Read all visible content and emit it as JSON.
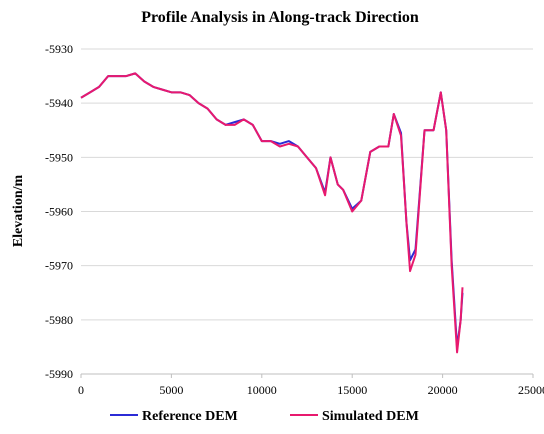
{
  "chart_data": {
    "type": "line",
    "title": "Profile Analysis in Along-track Direction",
    "y_label": "Elevation/m",
    "x": [
      0,
      500,
      1000,
      1500,
      2000,
      2500,
      3000,
      3500,
      4000,
      4500,
      5000,
      5500,
      6000,
      6500,
      7000,
      7500,
      8000,
      8500,
      9000,
      9500,
      10000,
      10500,
      11000,
      11500,
      12000,
      12500,
      13000,
      13500,
      13800,
      14200,
      14500,
      15000,
      15500,
      16000,
      16500,
      17000,
      17300,
      17700,
      18000,
      18200,
      18500,
      19000,
      19500,
      19900,
      20200,
      20500,
      20800,
      21000,
      21100
    ],
    "series": [
      {
        "name": "Reference DEM",
        "color": "#2b2bd6",
        "values": [
          -5939,
          -5938,
          -5937,
          -5935,
          -5935,
          -5935,
          -5934.5,
          -5936,
          -5937,
          -5937.5,
          -5938,
          -5938,
          -5938.5,
          -5940,
          -5941,
          -5943,
          -5944,
          -5943.5,
          -5943,
          -5944,
          -5947,
          -5947,
          -5947.5,
          -5947,
          -5948,
          -5950,
          -5952,
          -5956.5,
          -5950,
          -5955,
          -5956,
          -5959.5,
          -5958,
          -5949,
          -5948,
          -5948,
          -5942,
          -5945.5,
          -5962,
          -5969,
          -5967,
          -5945,
          -5945,
          -5938,
          -5945,
          -5969,
          -5985,
          -5980,
          -5975
        ]
      },
      {
        "name": "Simulated DEM",
        "color": "#e8196e",
        "values": [
          -5939,
          -5938,
          -5937,
          -5935,
          -5935,
          -5935,
          -5934.5,
          -5936,
          -5937,
          -5937.5,
          -5938,
          -5938,
          -5938.5,
          -5940,
          -5941,
          -5943,
          -5944,
          -5944,
          -5943,
          -5944,
          -5947,
          -5947,
          -5948,
          -5947.5,
          -5948,
          -5950,
          -5952,
          -5957,
          -5950,
          -5955,
          -5956,
          -5960,
          -5958,
          -5949,
          -5948,
          -5948,
          -5942,
          -5946,
          -5962,
          -5971,
          -5968,
          -5945,
          -5945,
          -5938,
          -5945,
          -5970,
          -5986,
          -5980,
          -5974
        ]
      }
    ],
    "xlim": [
      0,
      25000
    ],
    "xticks": [
      0,
      5000,
      10000,
      15000,
      20000,
      25000
    ],
    "ylim": [
      -5990,
      -5930
    ],
    "yticks": [
      -5930,
      -5940,
      -5950,
      -5960,
      -5970,
      -5980,
      -5990
    ],
    "grid": true,
    "legend": "bottom"
  }
}
